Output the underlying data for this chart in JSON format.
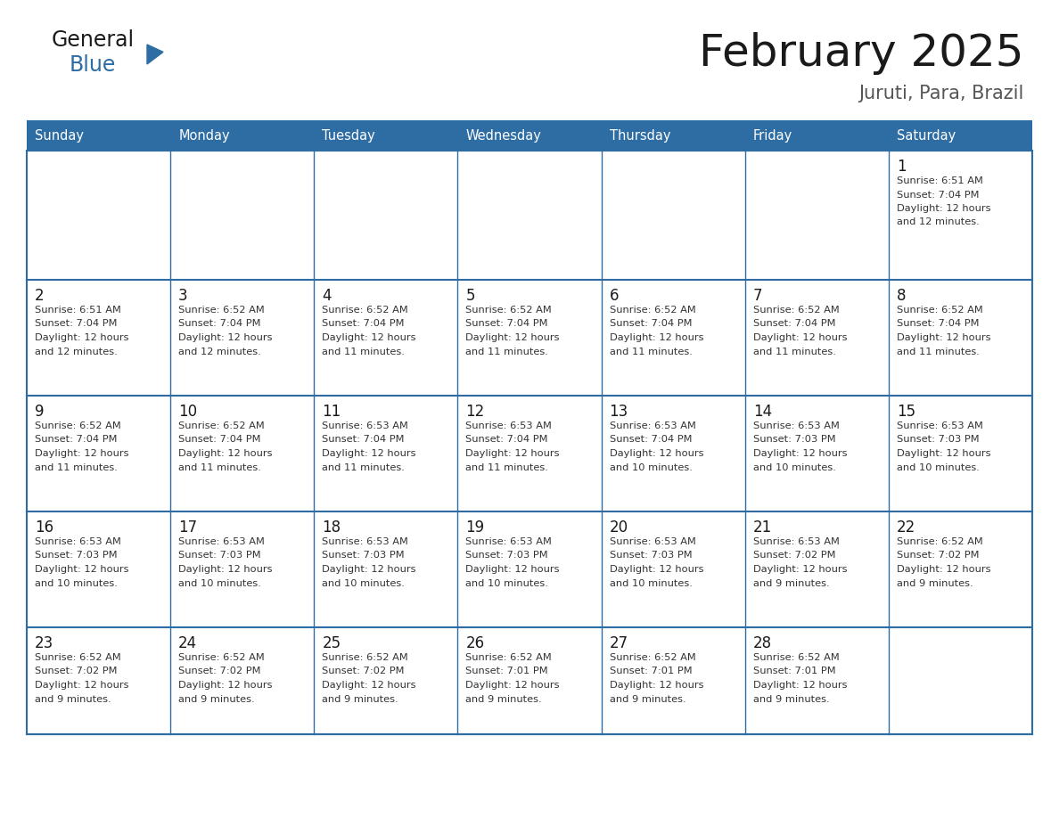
{
  "title": "February 2025",
  "subtitle": "Juruti, Para, Brazil",
  "header_bg": "#2E6DA4",
  "header_text_color": "#FFFFFF",
  "day_names": [
    "Sunday",
    "Monday",
    "Tuesday",
    "Wednesday",
    "Thursday",
    "Friday",
    "Saturday"
  ],
  "title_color": "#1a1a1a",
  "subtitle_color": "#555555",
  "line_color": "#2E6DA4",
  "number_color": "#1a1a1a",
  "info_color": "#333333",
  "calendar": [
    [
      null,
      null,
      null,
      null,
      null,
      null,
      {
        "day": 1,
        "sunrise": "6:51 AM",
        "sunset": "7:04 PM",
        "daylight": "12 hours and 12 minutes."
      }
    ],
    [
      {
        "day": 2,
        "sunrise": "6:51 AM",
        "sunset": "7:04 PM",
        "daylight": "12 hours and 12 minutes."
      },
      {
        "day": 3,
        "sunrise": "6:52 AM",
        "sunset": "7:04 PM",
        "daylight": "12 hours and 12 minutes."
      },
      {
        "day": 4,
        "sunrise": "6:52 AM",
        "sunset": "7:04 PM",
        "daylight": "12 hours and 11 minutes."
      },
      {
        "day": 5,
        "sunrise": "6:52 AM",
        "sunset": "7:04 PM",
        "daylight": "12 hours and 11 minutes."
      },
      {
        "day": 6,
        "sunrise": "6:52 AM",
        "sunset": "7:04 PM",
        "daylight": "12 hours and 11 minutes."
      },
      {
        "day": 7,
        "sunrise": "6:52 AM",
        "sunset": "7:04 PM",
        "daylight": "12 hours and 11 minutes."
      },
      {
        "day": 8,
        "sunrise": "6:52 AM",
        "sunset": "7:04 PM",
        "daylight": "12 hours and 11 minutes."
      }
    ],
    [
      {
        "day": 9,
        "sunrise": "6:52 AM",
        "sunset": "7:04 PM",
        "daylight": "12 hours and 11 minutes."
      },
      {
        "day": 10,
        "sunrise": "6:52 AM",
        "sunset": "7:04 PM",
        "daylight": "12 hours and 11 minutes."
      },
      {
        "day": 11,
        "sunrise": "6:53 AM",
        "sunset": "7:04 PM",
        "daylight": "12 hours and 11 minutes."
      },
      {
        "day": 12,
        "sunrise": "6:53 AM",
        "sunset": "7:04 PM",
        "daylight": "12 hours and 11 minutes."
      },
      {
        "day": 13,
        "sunrise": "6:53 AM",
        "sunset": "7:04 PM",
        "daylight": "12 hours and 10 minutes."
      },
      {
        "day": 14,
        "sunrise": "6:53 AM",
        "sunset": "7:03 PM",
        "daylight": "12 hours and 10 minutes."
      },
      {
        "day": 15,
        "sunrise": "6:53 AM",
        "sunset": "7:03 PM",
        "daylight": "12 hours and 10 minutes."
      }
    ],
    [
      {
        "day": 16,
        "sunrise": "6:53 AM",
        "sunset": "7:03 PM",
        "daylight": "12 hours and 10 minutes."
      },
      {
        "day": 17,
        "sunrise": "6:53 AM",
        "sunset": "7:03 PM",
        "daylight": "12 hours and 10 minutes."
      },
      {
        "day": 18,
        "sunrise": "6:53 AM",
        "sunset": "7:03 PM",
        "daylight": "12 hours and 10 minutes."
      },
      {
        "day": 19,
        "sunrise": "6:53 AM",
        "sunset": "7:03 PM",
        "daylight": "12 hours and 10 minutes."
      },
      {
        "day": 20,
        "sunrise": "6:53 AM",
        "sunset": "7:03 PM",
        "daylight": "12 hours and 10 minutes."
      },
      {
        "day": 21,
        "sunrise": "6:53 AM",
        "sunset": "7:02 PM",
        "daylight": "12 hours and 9 minutes."
      },
      {
        "day": 22,
        "sunrise": "6:52 AM",
        "sunset": "7:02 PM",
        "daylight": "12 hours and 9 minutes."
      }
    ],
    [
      {
        "day": 23,
        "sunrise": "6:52 AM",
        "sunset": "7:02 PM",
        "daylight": "12 hours and 9 minutes."
      },
      {
        "day": 24,
        "sunrise": "6:52 AM",
        "sunset": "7:02 PM",
        "daylight": "12 hours and 9 minutes."
      },
      {
        "day": 25,
        "sunrise": "6:52 AM",
        "sunset": "7:02 PM",
        "daylight": "12 hours and 9 minutes."
      },
      {
        "day": 26,
        "sunrise": "6:52 AM",
        "sunset": "7:01 PM",
        "daylight": "12 hours and 9 minutes."
      },
      {
        "day": 27,
        "sunrise": "6:52 AM",
        "sunset": "7:01 PM",
        "daylight": "12 hours and 9 minutes."
      },
      {
        "day": 28,
        "sunrise": "6:52 AM",
        "sunset": "7:01 PM",
        "daylight": "12 hours and 9 minutes."
      },
      null
    ]
  ],
  "logo_general_color": "#1a1a1a",
  "logo_blue_color": "#2E6DA4",
  "logo_triangle_color": "#2E6DA4",
  "fig_width": 11.88,
  "fig_height": 9.18,
  "dpi": 100
}
